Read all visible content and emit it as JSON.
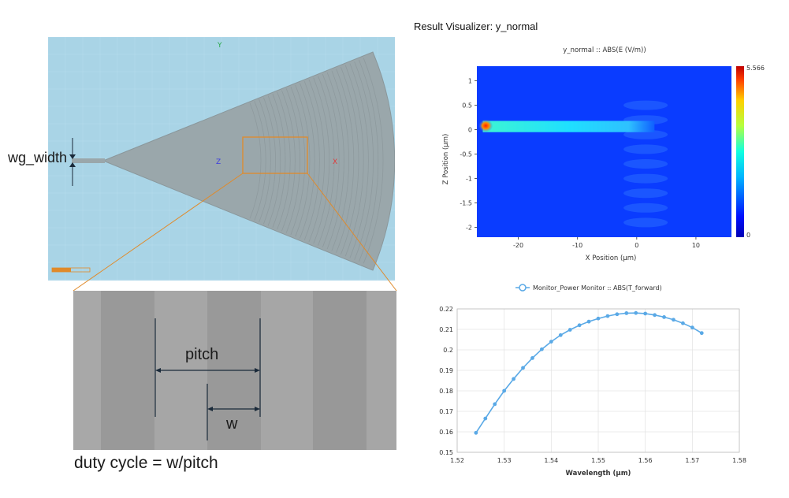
{
  "layout": {
    "axis_y_label": "Y",
    "axis_z_label": "Z",
    "axis_x_label": "X",
    "wg_width_label": "wg_width",
    "colors": {
      "background": "#a9d4e6",
      "device": "#9aa7ab",
      "highlight_box": "#e08a2a",
      "axis_y": "#2aa84a",
      "axis_z": "#3a3ae0",
      "axis_x": "#e03a3a"
    }
  },
  "zoom": {
    "pitch_label": "pitch",
    "w_label": "w",
    "duty_cycle_text": "duty cycle = w/pitch"
  },
  "result": {
    "title": "Result  Visualizer:  y_normal"
  },
  "chart_data": [
    {
      "type": "heatmap",
      "title": "y_normal :: ABS(E (V/m))",
      "xlabel": "X Position (μm)",
      "ylabel": "Z Position (μm)",
      "xlim": [
        -27,
        16
      ],
      "ylim": [
        -2.2,
        1.3
      ],
      "x_ticks": [
        -20,
        -10,
        0,
        10
      ],
      "y_ticks": [
        1,
        0.5,
        0,
        -0.5,
        -1,
        -1.5,
        -2
      ],
      "colorbar": {
        "min": 0,
        "max": 5.566,
        "min_label": "0",
        "max_label": "5.566"
      },
      "grid": false
    },
    {
      "type": "line",
      "legend": "Monitor_Power Monitor :: ABS(T_forward)",
      "legend_position": "top",
      "xlabel": "Wavelength (μm)",
      "ylabel": "",
      "xlim": [
        1.52,
        1.58
      ],
      "ylim": [
        0.15,
        0.22
      ],
      "x_ticks": [
        1.52,
        1.53,
        1.54,
        1.55,
        1.56,
        1.57,
        1.58
      ],
      "y_ticks": [
        0.15,
        0.16,
        0.17,
        0.18,
        0.19,
        0.2,
        0.21,
        0.22
      ],
      "grid": true,
      "color": "#5aa9e6",
      "x": [
        1.524,
        1.526,
        1.528,
        1.53,
        1.532,
        1.534,
        1.536,
        1.538,
        1.54,
        1.542,
        1.544,
        1.546,
        1.548,
        1.55,
        1.552,
        1.554,
        1.556,
        1.558,
        1.56,
        1.562,
        1.564,
        1.566,
        1.568,
        1.57,
        1.572
      ],
      "y": [
        0.1595,
        0.1665,
        0.1735,
        0.18,
        0.1858,
        0.1912,
        0.196,
        0.2003,
        0.204,
        0.2072,
        0.2098,
        0.212,
        0.2138,
        0.2153,
        0.2165,
        0.2174,
        0.2179,
        0.218,
        0.2177,
        0.217,
        0.216,
        0.2147,
        0.213,
        0.2109,
        0.2082
      ]
    }
  ]
}
